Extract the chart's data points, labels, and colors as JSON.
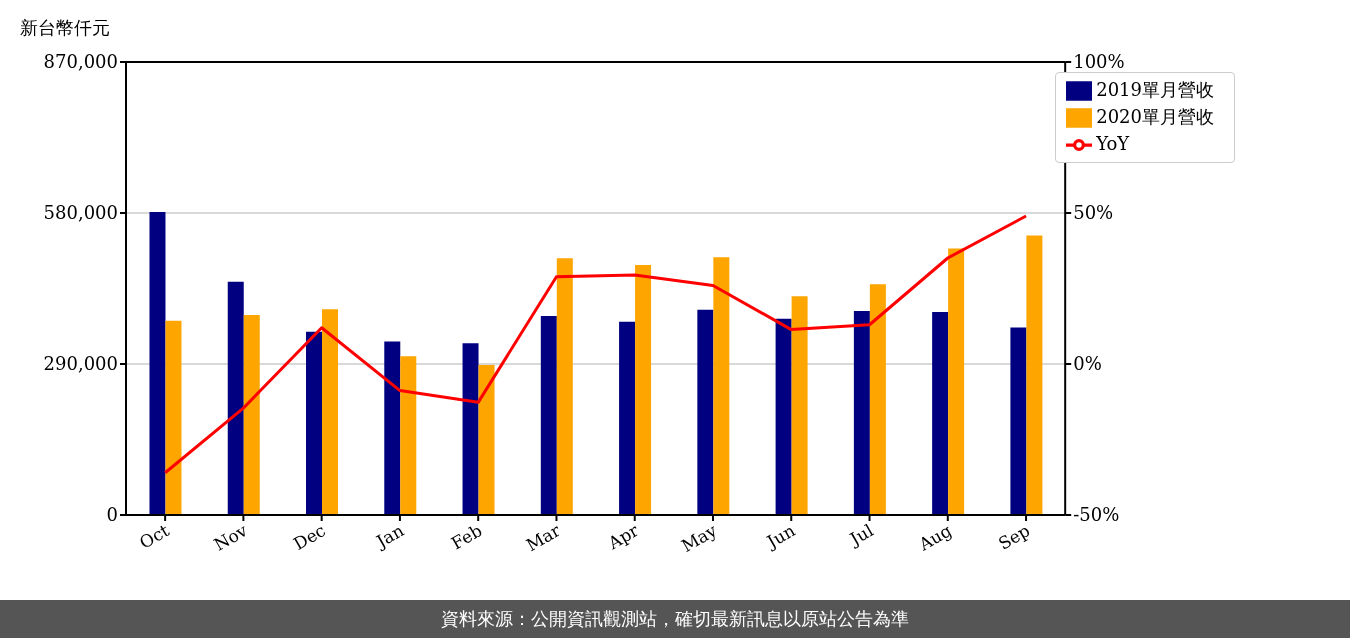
{
  "chart_data": {
    "type": "bar",
    "ylabel": "新台幣仟元",
    "categories": [
      "Oct",
      "Nov",
      "Dec",
      "Jan",
      "Feb",
      "Mar",
      "Apr",
      "May",
      "Jun",
      "Jul",
      "Aug",
      "Sep"
    ],
    "series": [
      {
        "name": "2019單月營收",
        "color": "#000080",
        "values": [
          582000,
          448000,
          352000,
          333000,
          330000,
          382000,
          371000,
          394000,
          377000,
          392000,
          390000,
          360000
        ]
      },
      {
        "name": "2020單月營收",
        "color": "#ffa500",
        "values": [
          373000,
          384000,
          395000,
          305000,
          288000,
          493000,
          480000,
          495000,
          420000,
          443000,
          512000,
          537000
        ]
      },
      {
        "name": "YoY",
        "type": "line",
        "axis": "y2",
        "color": "#ff0000",
        "values": [
          -36.0,
          -14.6,
          12.0,
          -8.8,
          -12.7,
          28.9,
          29.5,
          26.0,
          11.4,
          13.0,
          35.1,
          49.0
        ]
      }
    ],
    "ylim": [
      0,
      870000
    ],
    "yticks": [
      {
        "value": 0,
        "label": "0"
      },
      {
        "value": 290000,
        "label": "290,000"
      },
      {
        "value": 580000,
        "label": "580,000"
      },
      {
        "value": 870000,
        "label": "870,000"
      }
    ],
    "y2lim": [
      -50,
      100
    ],
    "y2ticks": [
      {
        "value": -50,
        "label": "-50%"
      },
      {
        "value": 0,
        "label": "0%"
      },
      {
        "value": 50,
        "label": "50%"
      },
      {
        "value": 100,
        "label": "100%"
      }
    ],
    "grid": "y",
    "legend": "top right",
    "marker": "none",
    "line_style": "solid",
    "annotations": [
      "資料來源：公開資訊觀測站，確切最新訊息以原站公告為準"
    ]
  }
}
